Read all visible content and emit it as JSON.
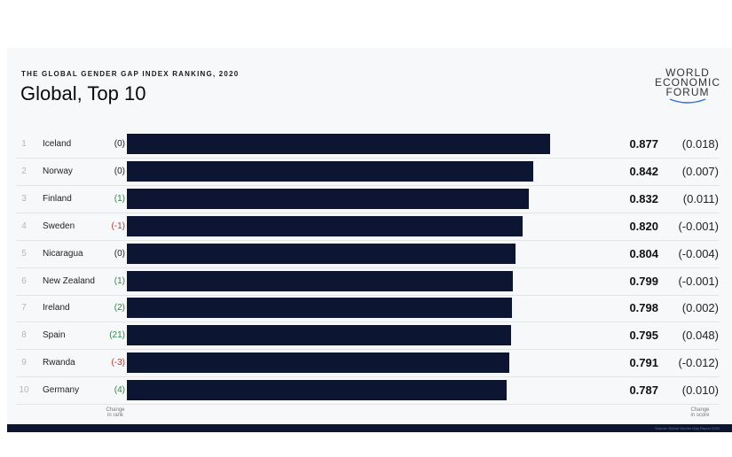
{
  "header": {
    "eyebrow": "THE GLOBAL GENDER GAP INDEX RANKING, 2020",
    "title": "Global, Top 10"
  },
  "logo": {
    "line1": "WORLD",
    "line2": "ECONOMIC",
    "line3": "FORUM"
  },
  "footer": {
    "rank_change_label_1": "Change",
    "rank_change_label_2": "in rank",
    "score_change_label_1": "Change",
    "score_change_label_2": "in score",
    "source": "Source: Global Gender Gap Report 2020"
  },
  "colors": {
    "bar": "#0c1633",
    "positive": "#2f8a45",
    "negative": "#c8342d"
  },
  "chart_data": {
    "type": "bar",
    "orientation": "horizontal",
    "title": "Global, Top 10",
    "xlim": [
      0,
      0.9
    ],
    "grid": false,
    "rows": [
      {
        "rank": "1",
        "country": "Iceland",
        "rank_change": "(0)",
        "trend": "neu",
        "score": 0.877,
        "score_label": "0.877",
        "score_change": "(0.018)"
      },
      {
        "rank": "2",
        "country": "Norway",
        "rank_change": "(0)",
        "trend": "neu",
        "score": 0.842,
        "score_label": "0.842",
        "score_change": "(0.007)"
      },
      {
        "rank": "3",
        "country": "Finland",
        "rank_change": "(1)",
        "trend": "pos",
        "score": 0.832,
        "score_label": "0.832",
        "score_change": "(0.011)"
      },
      {
        "rank": "4",
        "country": "Sweden",
        "rank_change": "(-1)",
        "trend": "neg",
        "score": 0.82,
        "score_label": "0.820",
        "score_change": "(-0.001)"
      },
      {
        "rank": "5",
        "country": "Nicaragua",
        "rank_change": "(0)",
        "trend": "neu",
        "score": 0.804,
        "score_label": "0.804",
        "score_change": "(-0.004)"
      },
      {
        "rank": "6",
        "country": "New Zealand",
        "rank_change": "(1)",
        "trend": "pos",
        "score": 0.799,
        "score_label": "0.799",
        "score_change": "(-0.001)"
      },
      {
        "rank": "7",
        "country": "Ireland",
        "rank_change": "(2)",
        "trend": "pos",
        "score": 0.798,
        "score_label": "0.798",
        "score_change": "(0.002)"
      },
      {
        "rank": "8",
        "country": "Spain",
        "rank_change": "(21)",
        "trend": "pos",
        "score": 0.795,
        "score_label": "0.795",
        "score_change": "(0.048)"
      },
      {
        "rank": "9",
        "country": "Rwanda",
        "rank_change": "(-3)",
        "trend": "neg",
        "score": 0.791,
        "score_label": "0.791",
        "score_change": "(-0.012)"
      },
      {
        "rank": "10",
        "country": "Germany",
        "rank_change": "(4)",
        "trend": "pos",
        "score": 0.787,
        "score_label": "0.787",
        "score_change": "(0.010)"
      }
    ]
  }
}
